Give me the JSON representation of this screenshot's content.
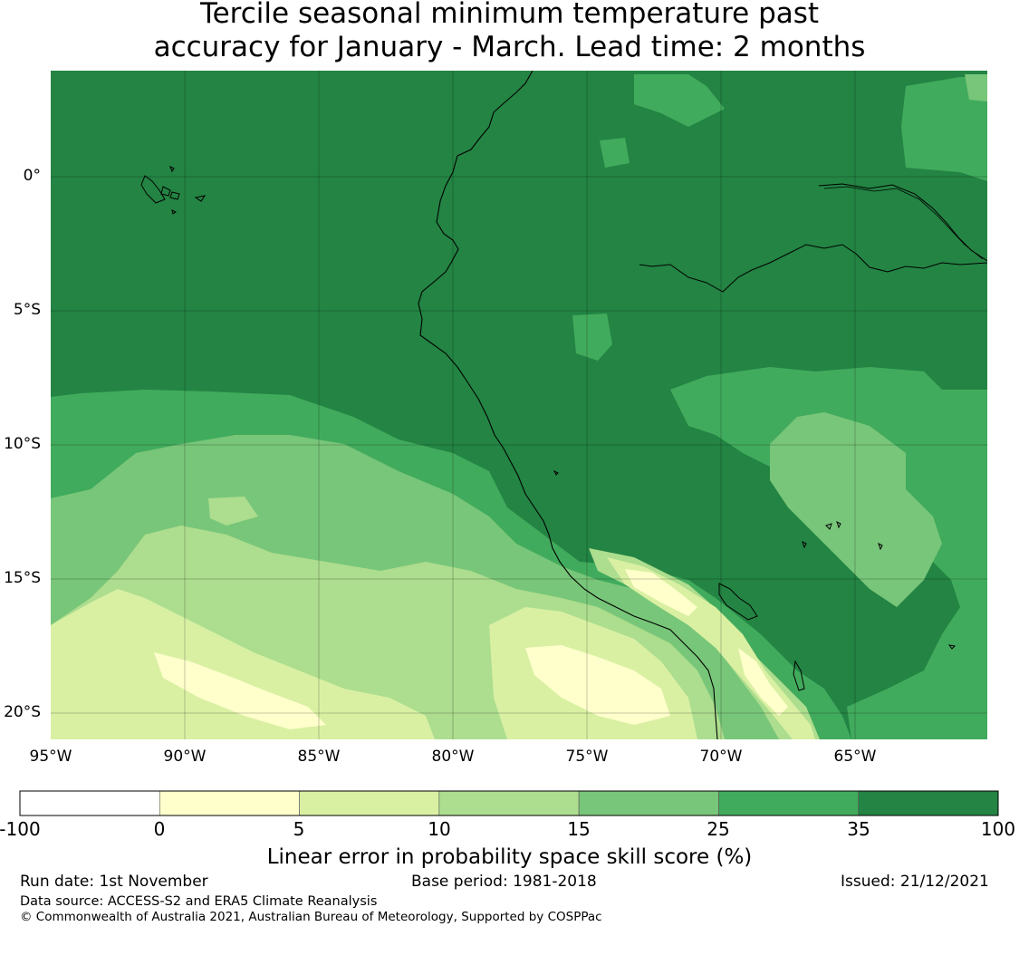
{
  "title": {
    "line1": "Tercile seasonal minimum temperature past",
    "line2": "accuracy for January - March. Lead time: 2 months"
  },
  "map": {
    "lat_labels": [
      "0°",
      "5°S",
      "10°S",
      "15°S",
      "20°S"
    ],
    "lon_labels": [
      "95°W",
      "90°W",
      "85°W",
      "80°W",
      "75°W",
      "70°W",
      "65°W"
    ],
    "lon_range": [
      -95,
      -60
    ],
    "lat_range": [
      -21,
      4
    ]
  },
  "colorbar": {
    "ticks": [
      "-100",
      "0",
      "5",
      "10",
      "15",
      "25",
      "35",
      "100"
    ],
    "colors": [
      "#ffffff",
      "#ffffcc",
      "#d9f0a3",
      "#addd8e",
      "#78c679",
      "#41ab5d",
      "#238443"
    ],
    "label": "Linear error in probability space skill score (%)"
  },
  "footer": {
    "run_date": "Run date: 1st November",
    "base_period": "Base period: 1981-2018",
    "issued": "Issued: 21/12/2021",
    "data_source": "Data source: ACCESS-S2 and ERA5 Climate Reanalysis",
    "copyright": "© Commonwealth of Australia 2021, Australian Bureau of Meteorology, Supported by COSPPac"
  }
}
